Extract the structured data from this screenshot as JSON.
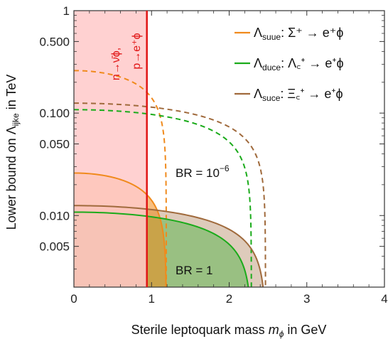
{
  "chart_data": {
    "type": "line",
    "xlabel_prefix": "Sterile leptoquark mass ",
    "xlabel_var": "m",
    "xlabel_var_sub": "ϕ",
    "xlabel_suffix": " in GeV",
    "ylabel_prefix": "Lower bound on ",
    "ylabel_var": "Λ",
    "ylabel_var_sub": "ijke",
    "ylabel_suffix": " in TeV",
    "xlim": [
      0,
      4
    ],
    "ylim": [
      0.002,
      1
    ],
    "yscale": "log",
    "x_ticks": [
      {
        "v": 0,
        "label": "0"
      },
      {
        "v": 1,
        "label": "1"
      },
      {
        "v": 2,
        "label": "2"
      },
      {
        "v": 3,
        "label": "3"
      },
      {
        "v": 4,
        "label": "4"
      }
    ],
    "y_ticks": [
      {
        "v": 1,
        "label": "1"
      },
      {
        "v": 0.5,
        "label": "0.500"
      },
      {
        "v": 0.1,
        "label": "0.100"
      },
      {
        "v": 0.05,
        "label": "0.050"
      },
      {
        "v": 0.01,
        "label": "0.010"
      },
      {
        "v": 0.005,
        "label": "0.005"
      }
    ],
    "legend_position": "top-right",
    "series": [
      {
        "key": "suue",
        "legend_main": "Λ",
        "legend_sub": "suue",
        "legend_rest": ": Σ⁺ → e⁺ϕ",
        "color": "#f08a1c",
        "br1": {
          "A": 0.026,
          "threshold": 1.19
        },
        "br6": {
          "A": 0.26,
          "threshold": 1.19
        }
      },
      {
        "key": "duce",
        "legend_main": "Λ",
        "legend_sub": "duce",
        "legend_rest": ": Λ꜀⁺ → e⁺ϕ",
        "color": "#1aab1a",
        "br1": {
          "A": 0.0108,
          "threshold": 2.286
        },
        "br6": {
          "A": 0.108,
          "threshold": 2.286
        }
      },
      {
        "key": "suce",
        "legend_main": "Λ",
        "legend_sub": "suce",
        "legend_rest": ": Ξ꜀⁺ → e⁺ϕ",
        "color": "#a06a3c",
        "br1": {
          "A": 0.0125,
          "threshold": 2.468
        },
        "br6": {
          "A": 0.125,
          "threshold": 2.468
        }
      }
    ],
    "annotations": {
      "br6": "BR = 10",
      "br6_exp": "−6",
      "br1": "BR = 1",
      "kinematic_line1": "n→ν̄ϕ,",
      "kinematic_line2": "p→e⁺ϕ"
    },
    "kinematic_limit_x": 0.94,
    "kinematic_color": "#e01515",
    "excluded_fill": "#ffc9c9"
  }
}
